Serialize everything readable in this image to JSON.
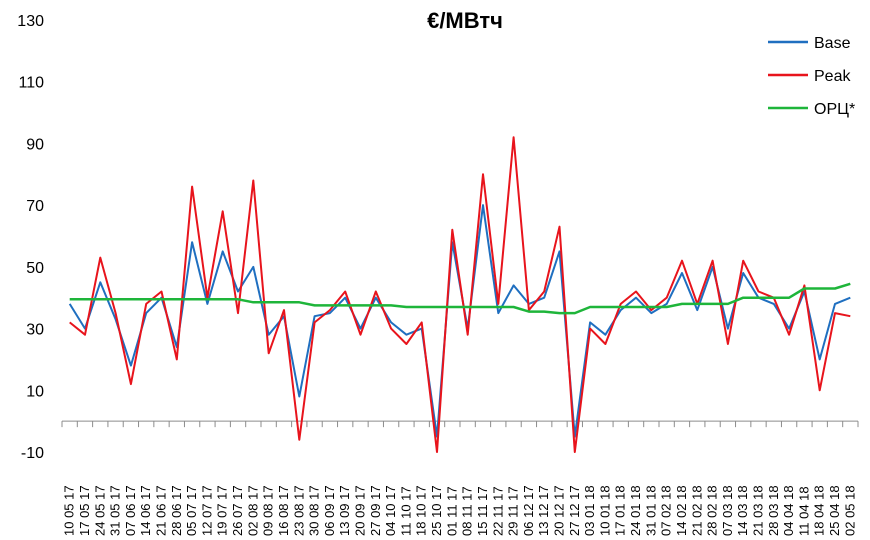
{
  "chart_data": {
    "type": "line",
    "title": "€/МВтч",
    "xlabel": "",
    "ylabel": "",
    "ylim": [
      -10,
      130
    ],
    "yticks": [
      130,
      110,
      90,
      70,
      50,
      30,
      10,
      -10
    ],
    "grid": false,
    "legend_position": "right",
    "x": [
      "10 05 17",
      "17 05 17",
      "24 05 17",
      "31 05 17",
      "07 06 17",
      "14 06 17",
      "21 06 17",
      "28 06 17",
      "05 07 17",
      "12 07 17",
      "19 07 17",
      "26 07 17",
      "02 08 17",
      "09 08 17",
      "16 08 17",
      "23 08 17",
      "30 08 17",
      "06 09 17",
      "13 09 17",
      "20 09 17",
      "27 09 17",
      "04 10 17",
      "11 10 17",
      "18 10 17",
      "25 10 17",
      "01 11 17",
      "08 11 17",
      "15 11 17",
      "22 11 17",
      "29 11 17",
      "06 12 17",
      "13 12 17",
      "20 12 17",
      "27 12 17",
      "03 01 18",
      "10 01 18",
      "17 01 18",
      "24 01 18",
      "31 01 18",
      "07 02 18",
      "14 02 18",
      "21 02 18",
      "28 02 18",
      "07 03 18",
      "14 03 18",
      "21 03 18",
      "28 03 18",
      "04 04 18",
      "11 04 18",
      "18 04 18",
      "25 04 18",
      "02 05 18"
    ],
    "series": [
      {
        "name": "Base",
        "color": "#1f6fc0",
        "values": [
          38,
          30,
          45,
          33,
          18,
          35,
          40,
          24,
          58,
          38,
          55,
          42,
          50,
          28,
          34,
          8,
          34,
          35,
          40,
          30,
          40,
          32,
          28,
          30,
          -5,
          58,
          30,
          70,
          35,
          44,
          38,
          40,
          55,
          -5,
          32,
          28,
          36,
          40,
          35,
          38,
          48,
          36,
          50,
          30,
          48,
          40,
          38,
          30,
          42,
          20,
          38,
          40
        ]
      },
      {
        "name": "Peak",
        "color": "#e8141c",
        "values": [
          32,
          28,
          53,
          35,
          12,
          38,
          42,
          20,
          76,
          40,
          68,
          35,
          78,
          22,
          36,
          -6,
          32,
          36,
          42,
          28,
          42,
          30,
          25,
          32,
          -10,
          62,
          28,
          80,
          38,
          92,
          36,
          42,
          63,
          -10,
          30,
          25,
          38,
          42,
          36,
          40,
          52,
          38,
          52,
          25,
          52,
          42,
          40,
          28,
          44,
          10,
          35,
          34
        ]
      },
      {
        "name": "ОРЦ*",
        "color": "#1eb53a",
        "values": [
          39.5,
          39.5,
          39.5,
          39.5,
          39.5,
          39.5,
          39.5,
          39.5,
          39.5,
          39.5,
          39.5,
          39.5,
          38.5,
          38.5,
          38.5,
          38.5,
          37.5,
          37.5,
          37.5,
          37.5,
          37.5,
          37.5,
          37,
          37,
          37,
          37,
          37,
          37,
          37,
          37,
          35.5,
          35.5,
          35,
          35,
          37,
          37,
          37,
          37,
          37,
          37,
          38,
          38,
          38,
          38,
          40,
          40,
          40,
          40,
          43,
          43,
          43,
          44.5
        ]
      }
    ]
  }
}
